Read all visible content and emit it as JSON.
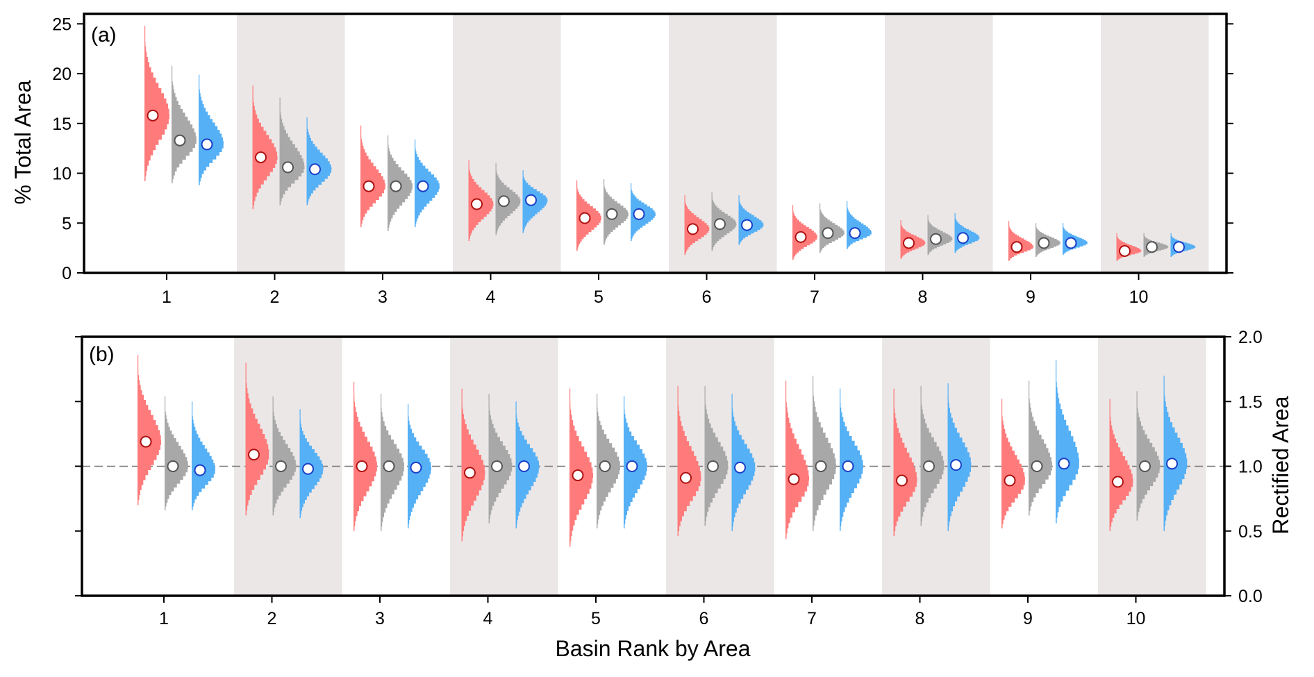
{
  "chart_data": [
    {
      "panel": "a",
      "panel_label": "(a)",
      "type": "histogram-violin",
      "ylabel": "% Total Area",
      "xlabel": "",
      "y_axis_side": "left",
      "ylim": [
        0,
        26
      ],
      "yticks": [
        0,
        5,
        10,
        15,
        20,
        25
      ],
      "ytick_labels": [
        "0",
        "5",
        "10",
        "15",
        "20",
        "25"
      ],
      "categories": [
        "1",
        "2",
        "3",
        "4",
        "5",
        "6",
        "7",
        "8",
        "9",
        "10"
      ],
      "shaded_categories": [
        2,
        4,
        6,
        8,
        10
      ],
      "reference_line": null,
      "series": [
        {
          "name": "red",
          "color": "#ff7b7b",
          "marker_edge": "#b01010",
          "means": [
            15.8,
            11.6,
            8.7,
            6.9,
            5.5,
            4.4,
            3.6,
            3.0,
            2.6,
            2.2
          ],
          "ranges": [
            [
              9.2,
              24.8
            ],
            [
              6.4,
              18.8
            ],
            [
              4.6,
              14.8
            ],
            [
              3.2,
              11.3
            ],
            [
              2.2,
              9.3
            ],
            [
              1.8,
              7.8
            ],
            [
              1.3,
              6.8
            ],
            [
              1.4,
              5.3
            ],
            [
              1.2,
              5.2
            ],
            [
              1.2,
              4.0
            ]
          ]
        },
        {
          "name": "gray",
          "color": "#a8a8a8",
          "marker_edge": "#555555",
          "means": [
            13.3,
            10.6,
            8.7,
            7.2,
            5.9,
            4.9,
            4.0,
            3.4,
            3.0,
            2.6
          ],
          "ranges": [
            [
              9.0,
              20.8
            ],
            [
              6.8,
              17.6
            ],
            [
              4.2,
              13.8
            ],
            [
              3.8,
              11.0
            ],
            [
              2.8,
              9.4
            ],
            [
              2.2,
              8.1
            ],
            [
              2.0,
              7.0
            ],
            [
              1.8,
              5.8
            ],
            [
              1.6,
              5.0
            ],
            [
              1.6,
              4.0
            ]
          ]
        },
        {
          "name": "blue",
          "color": "#55b0f5",
          "marker_edge": "#1a3fc8",
          "means": [
            12.9,
            10.4,
            8.7,
            7.3,
            5.9,
            4.8,
            4.0,
            3.5,
            3.0,
            2.6
          ],
          "ranges": [
            [
              8.8,
              19.9
            ],
            [
              6.8,
              15.6
            ],
            [
              4.6,
              13.4
            ],
            [
              4.0,
              10.3
            ],
            [
              3.2,
              9.0
            ],
            [
              2.8,
              7.8
            ],
            [
              2.4,
              7.2
            ],
            [
              2.0,
              6.0
            ],
            [
              1.8,
              5.0
            ],
            [
              1.6,
              4.0
            ]
          ]
        }
      ]
    },
    {
      "panel": "b",
      "panel_label": "(b)",
      "type": "histogram-violin",
      "ylabel": "Rectified Area",
      "xlabel": "Basin Rank by Area",
      "y_axis_side": "right",
      "ylim": [
        0.0,
        2.0
      ],
      "yticks": [
        0.0,
        0.5,
        1.0,
        1.5,
        2.0
      ],
      "ytick_labels": [
        "0.0",
        "0.5",
        "1.0",
        "1.5",
        "2.0"
      ],
      "categories": [
        "1",
        "2",
        "3",
        "4",
        "5",
        "6",
        "7",
        "8",
        "9",
        "10"
      ],
      "shaded_categories": [
        2,
        4,
        6,
        8,
        10
      ],
      "reference_line": 1.0,
      "series": [
        {
          "name": "red",
          "color": "#ff7b7b",
          "marker_edge": "#b01010",
          "means": [
            1.19,
            1.09,
            1.0,
            0.95,
            0.93,
            0.91,
            0.9,
            0.89,
            0.89,
            0.88
          ],
          "ranges": [
            [
              0.7,
              1.86
            ],
            [
              0.62,
              1.8
            ],
            [
              0.5,
              1.65
            ],
            [
              0.42,
              1.6
            ],
            [
              0.38,
              1.6
            ],
            [
              0.46,
              1.62
            ],
            [
              0.44,
              1.66
            ],
            [
              0.46,
              1.6
            ],
            [
              0.52,
              1.52
            ],
            [
              0.5,
              1.52
            ]
          ]
        },
        {
          "name": "gray",
          "color": "#a8a8a8",
          "marker_edge": "#555555",
          "means": [
            1.0,
            1.0,
            1.0,
            1.0,
            1.0,
            1.0,
            1.0,
            1.0,
            1.0,
            1.0
          ],
          "ranges": [
            [
              0.66,
              1.54
            ],
            [
              0.62,
              1.54
            ],
            [
              0.5,
              1.56
            ],
            [
              0.56,
              1.56
            ],
            [
              0.52,
              1.56
            ],
            [
              0.54,
              1.62
            ],
            [
              0.5,
              1.7
            ],
            [
              0.54,
              1.62
            ],
            [
              0.62,
              1.66
            ],
            [
              0.58,
              1.58
            ]
          ]
        },
        {
          "name": "blue",
          "color": "#55b0f5",
          "marker_edge": "#1a3fc8",
          "means": [
            0.97,
            0.98,
            0.99,
            1.0,
            1.0,
            0.99,
            1.0,
            1.01,
            1.02,
            1.02
          ],
          "ranges": [
            [
              0.66,
              1.5
            ],
            [
              0.6,
              1.44
            ],
            [
              0.52,
              1.48
            ],
            [
              0.52,
              1.5
            ],
            [
              0.52,
              1.54
            ],
            [
              0.5,
              1.56
            ],
            [
              0.5,
              1.6
            ],
            [
              0.5,
              1.64
            ],
            [
              0.56,
              1.82
            ],
            [
              0.5,
              1.7
            ]
          ]
        }
      ]
    }
  ]
}
